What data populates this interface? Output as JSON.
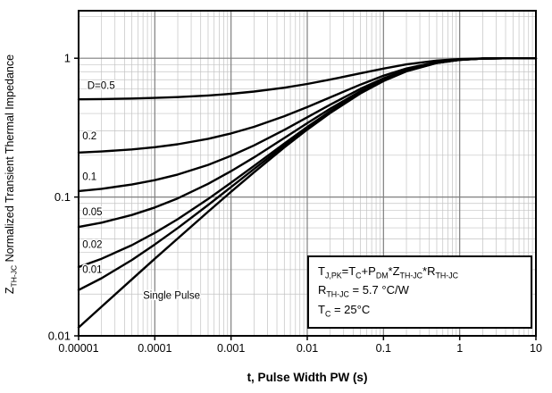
{
  "chart_data": {
    "type": "line",
    "title": "",
    "xlabel": "t, Pulse Width PW (s)",
    "ylabel": "Z_TH-JC Normalized Transient Thermal Impedance",
    "ylabel_segments": [
      [
        "Z",
        "TH-JC"
      ],
      [
        " Normalized Transient Thermal Impedance",
        ""
      ]
    ],
    "x_scale": "log",
    "y_scale": "log",
    "xlim": [
      1e-05,
      10
    ],
    "ylim": [
      0.01,
      2.2
    ],
    "grid": true,
    "line_color": "#000000",
    "x_tick_values": [
      1e-05,
      0.0001,
      0.001,
      0.01,
      0.1,
      1,
      10
    ],
    "x_tick_labels": [
      "0.00001",
      "0.0001",
      "0.001",
      "0.01",
      "0.1",
      "1",
      "10"
    ],
    "y_tick_values": [
      0.01,
      0.1,
      1
    ],
    "y_tick_labels": [
      "0.01",
      "0.1",
      "1"
    ],
    "x": [
      1e-05,
      2e-05,
      5e-05,
      0.0001,
      0.0002,
      0.0005,
      0.001,
      0.002,
      0.005,
      0.01,
      0.02,
      0.05,
      0.1,
      0.2,
      0.5,
      1,
      2,
      5,
      10
    ],
    "series": [
      {
        "name": "D=0.5",
        "duty_cycle": 0.5,
        "values": [
          0.5058,
          0.5081,
          0.5128,
          0.518,
          0.5252,
          0.5392,
          0.5546,
          0.5754,
          0.6138,
          0.653,
          0.7017,
          0.779,
          0.8425,
          0.9024,
          0.9622,
          0.9871,
          0.9972,
          0.9999,
          1.0
        ]
      },
      {
        "name": "0.2",
        "duty_cycle": 0.2,
        "values": [
          0.2092,
          0.213,
          0.2204,
          0.2287,
          0.2402,
          0.2627,
          0.2873,
          0.3206,
          0.3821,
          0.4447,
          0.5226,
          0.6464,
          0.7479,
          0.8438,
          0.9395,
          0.9793,
          0.9954,
          0.9998,
          1.0
        ]
      },
      {
        "name": "0.1",
        "duty_cycle": 0.1,
        "values": [
          0.1104,
          0.1146,
          0.123,
          0.1323,
          0.1453,
          0.1706,
          0.1982,
          0.2356,
          0.3048,
          0.3753,
          0.463,
          0.6022,
          0.7164,
          0.8242,
          0.932,
          0.9767,
          0.9949,
          0.9997,
          1.0
        ]
      },
      {
        "name": "0.05",
        "duty_cycle": 0.05,
        "values": [
          0.0609,
          0.0654,
          0.0742,
          0.0841,
          0.0978,
          0.1245,
          0.1536,
          0.1932,
          0.2662,
          0.3406,
          0.4331,
          0.5801,
          0.7007,
          0.8145,
          0.9282,
          0.9754,
          0.9946,
          0.9997,
          1.0
        ]
      },
      {
        "name": "0.02",
        "duty_cycle": 0.02,
        "values": [
          0.0313,
          0.0359,
          0.045,
          0.0552,
          0.0693,
          0.0968,
          0.1269,
          0.1677,
          0.243,
          0.3198,
          0.4152,
          0.5668,
          0.6912,
          0.8086,
          0.9259,
          0.9746,
          0.9944,
          0.9997,
          1.0
        ]
      },
      {
        "name": "0.01",
        "duty_cycle": 0.01,
        "values": [
          0.0214,
          0.026,
          0.0352,
          0.0455,
          0.0598,
          0.0876,
          0.118,
          0.1592,
          0.2353,
          0.3128,
          0.4093,
          0.5624,
          0.6881,
          0.8067,
          0.9252,
          0.9744,
          0.9944,
          0.9997,
          1.0
        ]
      },
      {
        "name": "Single Pulse",
        "duty_cycle": null,
        "values": [
          0.0115,
          0.0162,
          0.0255,
          0.0359,
          0.0503,
          0.0784,
          0.1091,
          0.1507,
          0.2276,
          0.3059,
          0.4033,
          0.558,
          0.6849,
          0.8047,
          0.9244,
          0.9741,
          0.9943,
          0.9997,
          1.0
        ]
      }
    ],
    "curve_labels": [
      {
        "text": "D=0.5",
        "x": 1.3e-05,
        "y": 0.6
      },
      {
        "text": "0.2",
        "x": 1.12e-05,
        "y": 0.26
      },
      {
        "text": "0.1",
        "x": 1.12e-05,
        "y": 0.133
      },
      {
        "text": "0.05",
        "x": 1.12e-05,
        "y": 0.074
      },
      {
        "text": "0.02",
        "x": 1.12e-05,
        "y": 0.043
      },
      {
        "text": "0.01",
        "x": 1.12e-05,
        "y": 0.0285
      },
      {
        "text": "Single Pulse",
        "x": 7e-05,
        "y": 0.0185
      }
    ]
  },
  "annotation_box": {
    "lines": [
      {
        "segments": [
          [
            "T",
            "J,PK"
          ],
          [
            "=T",
            "C"
          ],
          [
            "+P",
            "DM"
          ],
          [
            "*Z",
            "TH-JC"
          ],
          [
            "*R",
            "TH-JC"
          ]
        ]
      },
      {
        "segments": [
          [
            "R",
            "TH-JC"
          ],
          [
            " = 5.7 °C/W",
            ""
          ]
        ]
      },
      {
        "segments": [
          [
            "T",
            "C"
          ],
          [
            " = 25°C",
            ""
          ]
        ]
      }
    ]
  }
}
